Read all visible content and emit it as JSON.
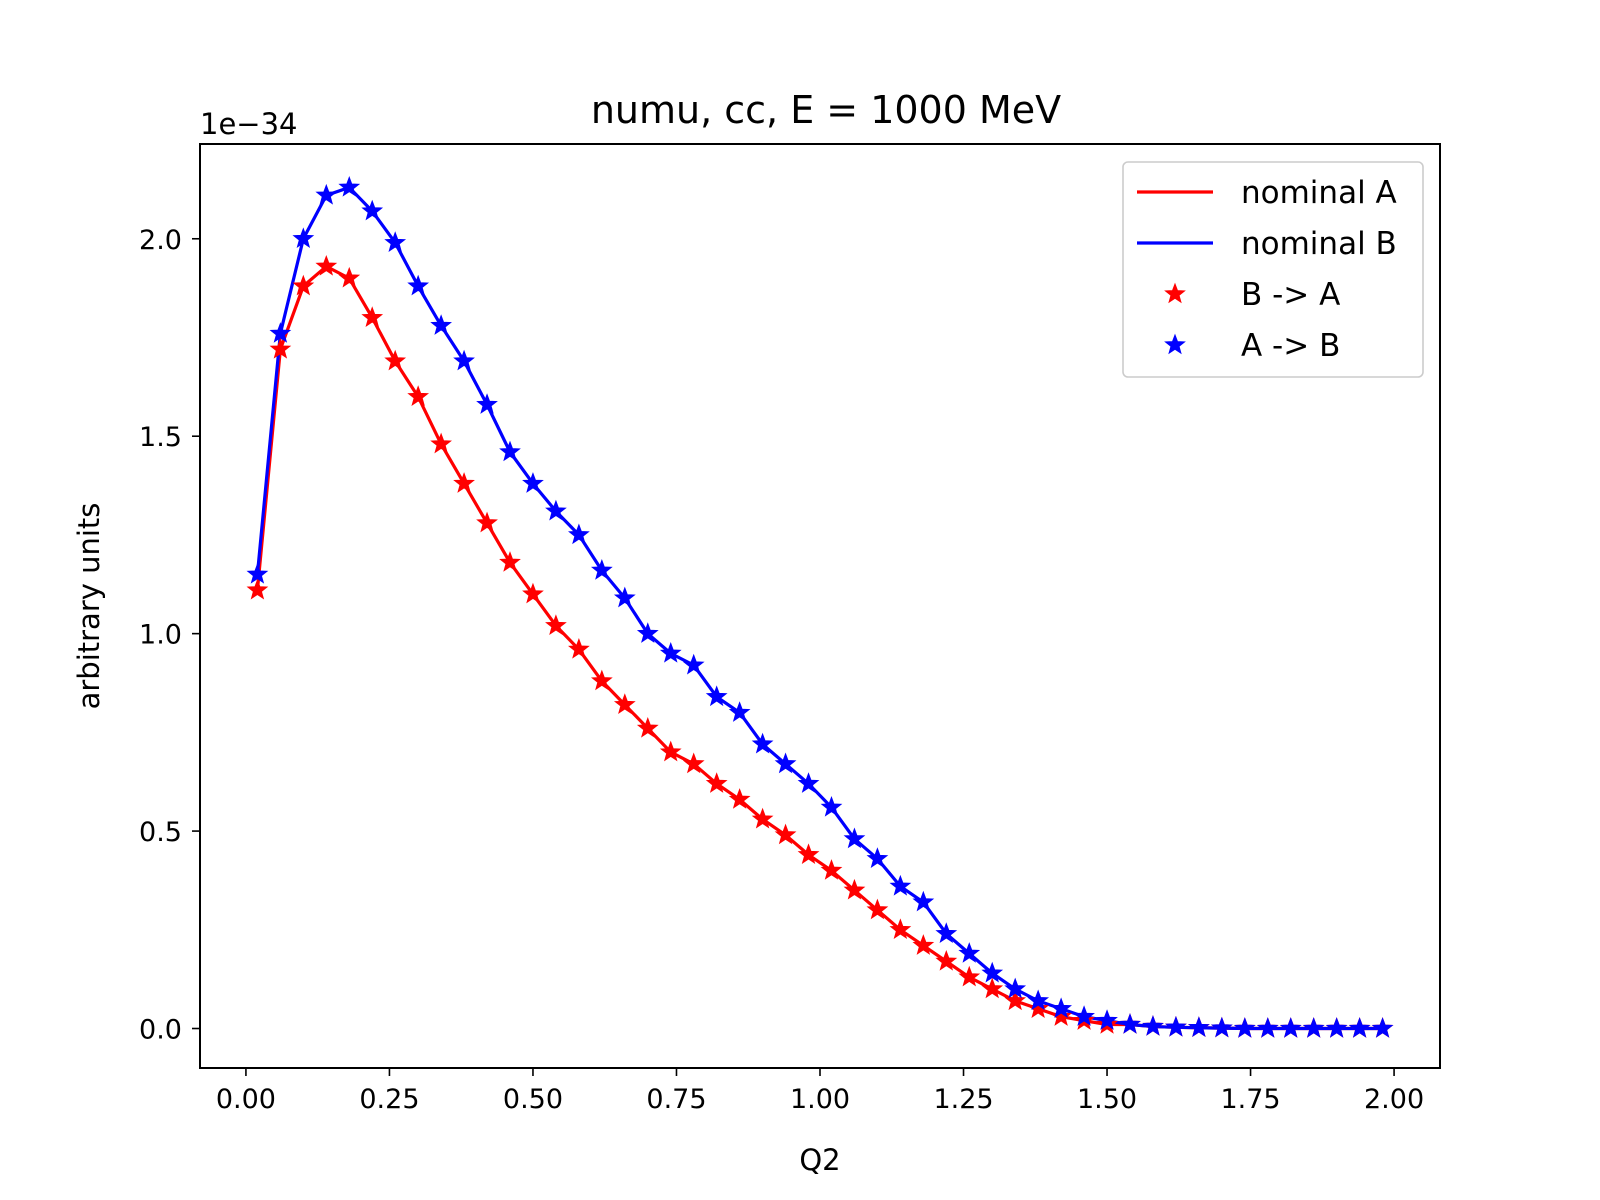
{
  "chart_data": {
    "type": "line",
    "title": "numu, cc, E = 1000 MeV",
    "xlabel": "Q2",
    "ylabel": "arbitrary units",
    "offset_label": "1e−34",
    "xlim": [
      -0.08,
      2.08
    ],
    "ylim": [
      -0.1,
      2.24
    ],
    "xticks": [
      0.0,
      0.25,
      0.5,
      0.75,
      1.0,
      1.25,
      1.5,
      1.75,
      2.0
    ],
    "xtick_labels": [
      "0.00",
      "0.25",
      "0.50",
      "0.75",
      "1.00",
      "1.25",
      "1.50",
      "1.75",
      "2.00"
    ],
    "yticks": [
      0.0,
      0.5,
      1.0,
      1.5,
      2.0
    ],
    "ytick_labels": [
      "0.0",
      "0.5",
      "1.0",
      "1.5",
      "2.0"
    ],
    "grid": false,
    "legend_position": "top-right",
    "x": [
      0.02,
      0.06,
      0.1,
      0.14,
      0.18,
      0.22,
      0.26,
      0.3,
      0.34,
      0.38,
      0.42,
      0.46,
      0.5,
      0.54,
      0.58,
      0.62,
      0.66,
      0.7,
      0.74,
      0.78,
      0.82,
      0.86,
      0.9,
      0.94,
      0.98,
      1.02,
      1.06,
      1.1,
      1.14,
      1.18,
      1.22,
      1.26,
      1.3,
      1.34,
      1.38,
      1.42,
      1.46,
      1.5,
      1.54,
      1.58,
      1.62,
      1.66,
      1.7,
      1.74,
      1.78,
      1.82,
      1.86,
      1.9,
      1.94,
      1.98
    ],
    "series": [
      {
        "name": "nominal A",
        "color": "#ff0000",
        "style": "line",
        "values": [
          1.11,
          1.72,
          1.88,
          1.93,
          1.9,
          1.8,
          1.69,
          1.6,
          1.48,
          1.38,
          1.28,
          1.18,
          1.1,
          1.02,
          0.96,
          0.88,
          0.82,
          0.76,
          0.7,
          0.67,
          0.62,
          0.58,
          0.53,
          0.49,
          0.44,
          0.4,
          0.35,
          0.3,
          0.25,
          0.21,
          0.17,
          0.13,
          0.1,
          0.07,
          0.05,
          0.03,
          0.02,
          0.01,
          0.01,
          0.005,
          0.003,
          0.002,
          0.001,
          0.0,
          0.0,
          0.0,
          0.0,
          0.0,
          0.0,
          0.0
        ]
      },
      {
        "name": "nominal B",
        "color": "#0000ff",
        "style": "line",
        "values": [
          1.15,
          1.76,
          2.0,
          2.11,
          2.13,
          2.07,
          1.99,
          1.88,
          1.78,
          1.69,
          1.58,
          1.46,
          1.38,
          1.31,
          1.25,
          1.16,
          1.09,
          1.0,
          0.95,
          0.92,
          0.84,
          0.8,
          0.72,
          0.67,
          0.62,
          0.56,
          0.48,
          0.43,
          0.36,
          0.32,
          0.24,
          0.19,
          0.14,
          0.1,
          0.07,
          0.05,
          0.03,
          0.02,
          0.01,
          0.005,
          0.003,
          0.002,
          0.001,
          0.0,
          0.0,
          0.0,
          0.0,
          0.0,
          0.0,
          0.0
        ]
      },
      {
        "name": "B -> A",
        "color": "#ff0000",
        "style": "markers",
        "marker": "star",
        "values": [
          1.11,
          1.72,
          1.88,
          1.93,
          1.9,
          1.8,
          1.69,
          1.6,
          1.48,
          1.38,
          1.28,
          1.18,
          1.1,
          1.02,
          0.96,
          0.88,
          0.82,
          0.76,
          0.7,
          0.67,
          0.62,
          0.58,
          0.53,
          0.49,
          0.44,
          0.4,
          0.35,
          0.3,
          0.25,
          0.21,
          0.17,
          0.13,
          0.1,
          0.07,
          0.05,
          0.03,
          0.02,
          0.01,
          0.01,
          0.005,
          0.003,
          0.002,
          0.001,
          0.0,
          0.0,
          0.0,
          0.0,
          0.0,
          0.0,
          0.0
        ]
      },
      {
        "name": "A -> B",
        "color": "#0000ff",
        "style": "markers",
        "marker": "star",
        "values": [
          1.15,
          1.76,
          2.0,
          2.11,
          2.13,
          2.07,
          1.99,
          1.88,
          1.78,
          1.69,
          1.58,
          1.46,
          1.38,
          1.31,
          1.25,
          1.16,
          1.09,
          1.0,
          0.95,
          0.92,
          0.84,
          0.8,
          0.72,
          0.67,
          0.62,
          0.56,
          0.48,
          0.43,
          0.36,
          0.32,
          0.24,
          0.19,
          0.14,
          0.1,
          0.07,
          0.05,
          0.03,
          0.02,
          0.01,
          0.005,
          0.003,
          0.002,
          0.001,
          0.0,
          0.0,
          0.0,
          0.0,
          0.0,
          0.0,
          0.0
        ]
      }
    ]
  }
}
